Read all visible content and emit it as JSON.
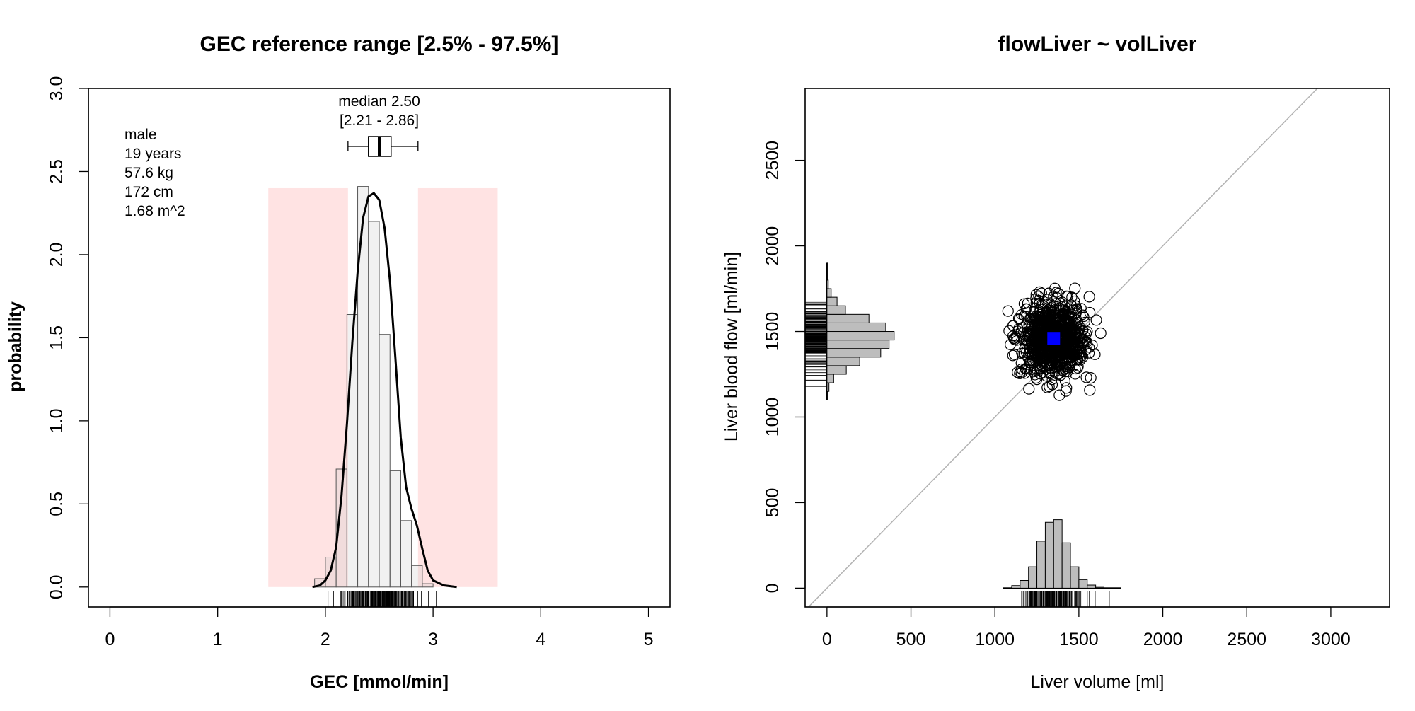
{
  "chart_data": [
    {
      "type": "bar",
      "title": "GEC reference range [2.5% - 97.5%]",
      "xlabel": "GEC [mmol/min]",
      "ylabel": "probability",
      "xlim": [
        -0.2,
        5.2
      ],
      "ylim": [
        -0.12,
        3.0
      ],
      "xticks": [
        "0",
        "1",
        "2",
        "3",
        "4",
        "5"
      ],
      "yticks": [
        "0.0",
        "0.5",
        "1.0",
        "1.5",
        "2.0",
        "2.5",
        "3.0"
      ],
      "grid": false,
      "subject_info": [
        "male",
        "19 years",
        "57.6 kg",
        "172 cm",
        "1.68 m^2"
      ],
      "median_label": "median 2.50",
      "ci_label": "[2.21 - 2.86]",
      "median": 2.5,
      "reference_range": [
        2.21,
        2.86
      ],
      "shaded_regions": [
        [
          1.47,
          2.21
        ],
        [
          2.86,
          3.6
        ]
      ],
      "shaded_height": 2.4,
      "boxplot": {
        "min": 2.21,
        "q1": 2.4,
        "median": 2.5,
        "q3": 2.61,
        "max": 2.86
      },
      "histogram": {
        "bin_width": 0.1,
        "bins": [
          {
            "x0": 1.9,
            "x1": 2.0,
            "density": 0.05
          },
          {
            "x0": 2.0,
            "x1": 2.1,
            "density": 0.18
          },
          {
            "x0": 2.1,
            "x1": 2.2,
            "density": 0.71
          },
          {
            "x0": 2.2,
            "x1": 2.3,
            "density": 1.64
          },
          {
            "x0": 2.3,
            "x1": 2.4,
            "density": 2.41
          },
          {
            "x0": 2.4,
            "x1": 2.5,
            "density": 2.2
          },
          {
            "x0": 2.5,
            "x1": 2.6,
            "density": 1.52
          },
          {
            "x0": 2.6,
            "x1": 2.7,
            "density": 0.7
          },
          {
            "x0": 2.7,
            "x1": 2.8,
            "density": 0.4
          },
          {
            "x0": 2.8,
            "x1": 2.9,
            "density": 0.13
          },
          {
            "x0": 2.9,
            "x1": 3.0,
            "density": 0.02
          }
        ]
      },
      "density_curve": {
        "x": [
          1.88,
          1.95,
          2.0,
          2.05,
          2.1,
          2.15,
          2.2,
          2.25,
          2.3,
          2.35,
          2.4,
          2.45,
          2.5,
          2.55,
          2.6,
          2.65,
          2.7,
          2.75,
          2.8,
          2.85,
          2.9,
          2.95,
          3.0,
          3.1,
          3.22
        ],
        "y": [
          0.0,
          0.01,
          0.04,
          0.1,
          0.24,
          0.55,
          0.98,
          1.47,
          1.9,
          2.22,
          2.35,
          2.37,
          2.33,
          2.16,
          1.84,
          1.38,
          0.9,
          0.6,
          0.47,
          0.37,
          0.23,
          0.1,
          0.04,
          0.01,
          0.0
        ]
      },
      "rug_range": [
        2.0,
        3.1
      ]
    },
    {
      "type": "scatter",
      "title": "flowLiver ~ volLiver",
      "xlabel": "Liver volume [ml]",
      "ylabel": "Liver blood flow [ml/min]",
      "xlim": [
        -130,
        3350
      ],
      "ylim": [
        -110,
        2920
      ],
      "xticks": [
        "0",
        "500",
        "1000",
        "1500",
        "2000",
        "2500",
        "3000"
      ],
      "yticks": [
        "0",
        "500",
        "1000",
        "1500",
        "2000",
        "2500"
      ],
      "grid": false,
      "identity_line": true,
      "center_point": {
        "x": 1350,
        "y": 1460
      },
      "cloud": {
        "x_mean": 1350,
        "x_sd": 95,
        "y_mean": 1460,
        "y_sd": 105,
        "n": 1000
      },
      "x_histogram": {
        "bin_width": 50,
        "bins": [
          {
            "x0": 1050,
            "x1": 1100,
            "count": 2
          },
          {
            "x0": 1100,
            "x1": 1150,
            "count": 15
          },
          {
            "x0": 1150,
            "x1": 1200,
            "count": 45
          },
          {
            "x0": 1200,
            "x1": 1250,
            "count": 125
          },
          {
            "x0": 1250,
            "x1": 1300,
            "count": 275
          },
          {
            "x0": 1300,
            "x1": 1350,
            "count": 385
          },
          {
            "x0": 1350,
            "x1": 1400,
            "count": 400
          },
          {
            "x0": 1400,
            "x1": 1450,
            "count": 265
          },
          {
            "x0": 1450,
            "x1": 1500,
            "count": 125
          },
          {
            "x0": 1500,
            "x1": 1550,
            "count": 50
          },
          {
            "x0": 1550,
            "x1": 1600,
            "count": 18
          },
          {
            "x0": 1600,
            "x1": 1650,
            "count": 5
          },
          {
            "x0": 1650,
            "x1": 1750,
            "count": 2
          }
        ]
      },
      "y_histogram": {
        "bin_width": 50,
        "bins": [
          {
            "y0": 1100,
            "y1": 1150,
            "count": 2
          },
          {
            "y0": 1150,
            "y1": 1200,
            "count": 12
          },
          {
            "y0": 1200,
            "y1": 1250,
            "count": 40
          },
          {
            "y0": 1250,
            "y1": 1300,
            "count": 115
          },
          {
            "y0": 1300,
            "y1": 1350,
            "count": 195
          },
          {
            "y0": 1350,
            "y1": 1400,
            "count": 320
          },
          {
            "y0": 1400,
            "y1": 1450,
            "count": 370
          },
          {
            "y0": 1450,
            "y1": 1500,
            "count": 400
          },
          {
            "y0": 1500,
            "y1": 1550,
            "count": 350
          },
          {
            "y0": 1550,
            "y1": 1600,
            "count": 250
          },
          {
            "y0": 1600,
            "y1": 1650,
            "count": 110
          },
          {
            "y0": 1650,
            "y1": 1700,
            "count": 60
          },
          {
            "y0": 1700,
            "y1": 1750,
            "count": 25
          },
          {
            "y0": 1750,
            "y1": 1800,
            "count": 8
          },
          {
            "y0": 1800,
            "y1": 1900,
            "count": 2
          }
        ]
      }
    }
  ]
}
